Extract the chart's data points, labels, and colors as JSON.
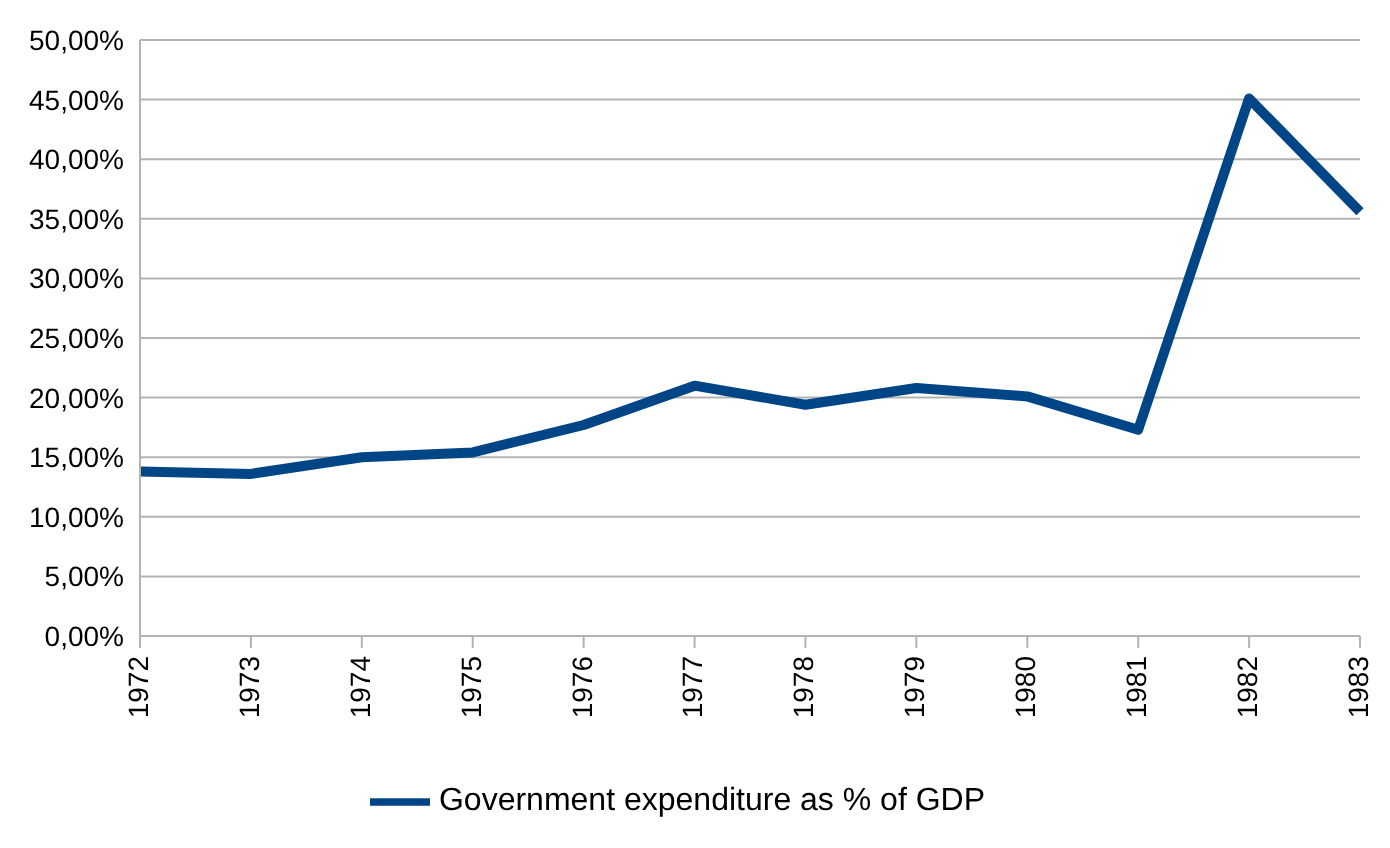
{
  "chart_data": {
    "type": "line",
    "categories": [
      "1972",
      "1973",
      "1974",
      "1975",
      "1976",
      "1977",
      "1978",
      "1979",
      "1980",
      "1981",
      "1982",
      "1983"
    ],
    "series": [
      {
        "name": "Government expenditure as % of GDP",
        "color": "#004586",
        "values": [
          13.8,
          13.6,
          15.0,
          15.4,
          17.7,
          21.0,
          19.4,
          20.8,
          20.1,
          17.3,
          45.1,
          35.6
        ]
      }
    ],
    "ylim": [
      0,
      50
    ],
    "yticks": [
      {
        "value": 0,
        "label": "0,00%"
      },
      {
        "value": 5,
        "label": "5,00%"
      },
      {
        "value": 10,
        "label": "10,00%"
      },
      {
        "value": 15,
        "label": "15,00%"
      },
      {
        "value": 20,
        "label": "20,00%"
      },
      {
        "value": 25,
        "label": "25,00%"
      },
      {
        "value": 30,
        "label": "30,00%"
      },
      {
        "value": 35,
        "label": "35,00%"
      },
      {
        "value": 40,
        "label": "40,00%"
      },
      {
        "value": 45,
        "label": "45,00%"
      },
      {
        "value": 50,
        "label": "50,00%"
      }
    ],
    "grid": "y",
    "legend": "bottom",
    "marker": "none",
    "line_style": "solid"
  }
}
